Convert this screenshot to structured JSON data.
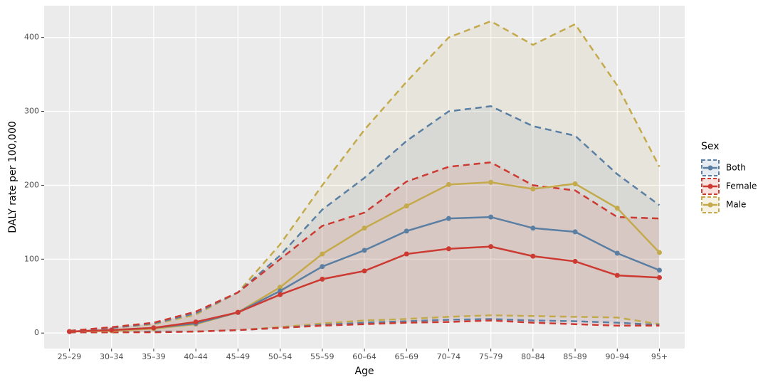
{
  "chart_data": {
    "type": "line",
    "x_label": "Age",
    "y_label": "DALY rate per 100,000",
    "categories": [
      "25–29",
      "30–34",
      "35–39",
      "40–44",
      "45–49",
      "50–54",
      "55–59",
      "60–64",
      "65–69",
      "70–74",
      "75–79",
      "80–84",
      "85–89",
      "90–94",
      "95+"
    ],
    "ylim": [
      -21,
      443
    ],
    "yticks": [
      0,
      100,
      200,
      300,
      400
    ],
    "grid": true,
    "legend_title": "Sex",
    "legend_position": "right",
    "series": [
      {
        "name": "Both",
        "color": "#5a7fa3",
        "values": [
          2,
          4,
          7,
          13,
          28,
          57,
          90,
          112,
          138,
          155,
          157,
          142,
          137,
          108,
          85
        ],
        "lower": [
          1,
          1,
          2,
          2,
          4,
          7,
          11,
          14,
          16,
          18,
          19,
          17,
          16,
          14,
          11
        ],
        "upper": [
          3,
          7,
          13,
          27,
          55,
          105,
          167,
          210,
          260,
          300,
          307,
          280,
          267,
          215,
          173
        ]
      },
      {
        "name": "Female",
        "color": "#cc3a32",
        "values": [
          2,
          4,
          7,
          15,
          28,
          52,
          73,
          84,
          107,
          114,
          117,
          104,
          97,
          78,
          75
        ],
        "lower": [
          1,
          1,
          1,
          2,
          4,
          7,
          10,
          12,
          14,
          15,
          17,
          14,
          12,
          10,
          10
        ],
        "upper": [
          3,
          8,
          14,
          29,
          55,
          100,
          145,
          163,
          205,
          225,
          231,
          200,
          193,
          157,
          155
        ]
      },
      {
        "name": "Male",
        "color": "#c4aa4b",
        "values": [
          2,
          3,
          6,
          12,
          28,
          62,
          107,
          142,
          172,
          201,
          204,
          195,
          202,
          169,
          109
        ],
        "lower": [
          1,
          1,
          2,
          2,
          4,
          8,
          13,
          17,
          19,
          22,
          24,
          23,
          22,
          21,
          12
        ],
        "upper": [
          3,
          7,
          12,
          25,
          55,
          120,
          200,
          275,
          340,
          400,
          422,
          390,
          418,
          335,
          225
        ]
      }
    ]
  }
}
